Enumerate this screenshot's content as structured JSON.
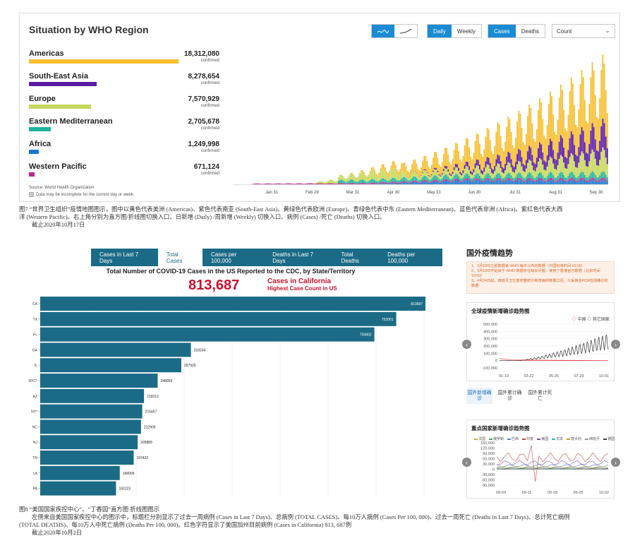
{
  "who": {
    "title": "Situation by WHO Region",
    "view_toggle": [
      "bar-chart-icon",
      "line-chart-icon"
    ],
    "period": {
      "daily": "Daily",
      "weekly": "Weekly"
    },
    "measure": {
      "cases": "Cases",
      "deaths": "Deaths"
    },
    "select_value": "Count",
    "confirmed_label": "confirmed",
    "regions": [
      {
        "name": "Americas",
        "value": "18,312,080",
        "color": "#f6bf2f",
        "num": 18312080
      },
      {
        "name": "South-East Asia",
        "value": "8,278,654",
        "color": "#5a1aa5",
        "num": 8278654
      },
      {
        "name": "Europe",
        "value": "7,570,929",
        "color": "#c6d85a",
        "num": 7570929
      },
      {
        "name": "Eastern Mediterranean",
        "value": "2,705,678",
        "color": "#20b39a",
        "num": 2705678
      },
      {
        "name": "Africa",
        "value": "1,249,998",
        "color": "#1777cf",
        "num": 1249998
      },
      {
        "name": "Western Pacific",
        "value": "671,124",
        "color": "#b5288d",
        "num": 671124
      }
    ],
    "source": "Source: World Health Organization",
    "note": "Data may be incomplete for the current day or week.",
    "months": [
      "Jan 31",
      "Feb 29",
      "Mar 31",
      "Apr 30",
      "May 31",
      "Jun 30",
      "Jul 31",
      "Aug 31",
      "Sep 30"
    ]
  },
  "caption1": {
    "line1": "图7 “世界卫生组织”疫情地图图示，图中以黄色代表美洲 (Americas)、紫色代表南亚 (South-East Asia)、黄绿色代表欧洲 (Europe)、青绿色代表中东 (Eastern Mediterranean)、蓝色代表非洲 (Africa)、紫红色代表大西",
    "line2": "洋 (Western Pacific)。右上角分别为直方图/折线图切换入口、日新增 (Daily) /周新增 (Weekly) 切换入口、病例 (Cases) /死亡 (Deaths) 切换入口。",
    "line3": "截止2020年10月17日"
  },
  "cdc": {
    "tabs": [
      "Cases in Last 7 Days",
      "Total Cases",
      "Cases per 100,000",
      "Deaths in Last 7 Days",
      "Total Deaths",
      "Deaths per 100,000"
    ],
    "active_tab": 1,
    "title": "Total Number of COVID-19 Cases in the US Reported to the CDC, by State/Territory",
    "big_number": "813,687",
    "big_label": "Cases in California",
    "big_sub": "Highest Case Count in US",
    "bar_color": "#1b6b86",
    "bars": [
      {
        "state": "CA",
        "value": 813687,
        "label": "813687"
      },
      {
        "state": "TX",
        "value": 752001,
        "label": "752001"
      },
      {
        "state": "FL",
        "value": 705802,
        "label": "705802"
      },
      {
        "state": "GA",
        "value": 318334,
        "label": "318334"
      },
      {
        "state": "IL",
        "value": 297929,
        "label": "297929"
      },
      {
        "state": "NYC*",
        "value": 248059,
        "label": "248059"
      },
      {
        "state": "AZ",
        "value": 219212,
        "label": "219212"
      },
      {
        "state": "NY*",
        "value": 215457,
        "label": "215457"
      },
      {
        "state": "NC",
        "value": 212909,
        "label": "212909"
      },
      {
        "state": "NJ",
        "value": 205889,
        "label": "205889"
      },
      {
        "state": "TN",
        "value": 197432,
        "label": "197432"
      },
      {
        "state": "LA",
        "value": 168009,
        "label": "168009"
      },
      {
        "state": "PA",
        "value": 160123,
        "label": "160123"
      }
    ]
  },
  "tencent": {
    "title": "国外疫情趋势",
    "notice": [
      "1、3月19日之前数据来 WHO 每日公布的数据（中国标准时间 10:00）",
      "2、3月19日开始由于 WHO 数据存在缺失问题，使用了香港官方数据（北京时间 10:00）",
      "3、4月24日起，西班牙卫生部修整统计新增病例数据口径，只采用含PCR检测确诊的数据"
    ],
    "card1": {
      "title": "全球疫情新增确诊趋势图",
      "legend_china": "中国",
      "legend_other": "其它国家",
      "y_ticks": [
        "500,000",
        "400,000",
        "300,000",
        "200,000",
        "100,000",
        "0",
        "-100,000"
      ],
      "x_ticks": [
        "01-19",
        "03-22",
        "05-26",
        "07-29",
        "10-01"
      ]
    },
    "tabs": [
      "国外新增确诊",
      "国外累计确诊",
      "国外累计死亡"
    ],
    "card2": {
      "title": "重点国家新增确诊趋势图",
      "legend": [
        {
          "name": "法国",
          "color": "#e5a13b"
        },
        {
          "name": "俄罗斯",
          "color": "#3fa66a"
        },
        {
          "name": "巴西",
          "color": "#5a7fd0"
        },
        {
          "name": "印度",
          "color": "#c44"
        },
        {
          "name": "美国",
          "color": "#7a4fb0"
        },
        {
          "name": "日本",
          "color": "#2bb3c8"
        },
        {
          "name": "意大利",
          "color": "#d98f2c"
        },
        {
          "name": "西班牙",
          "color": "#999"
        },
        {
          "name": "德国",
          "color": "#444"
        }
      ],
      "y_ticks": [
        "150,000",
        "120,000",
        "90,000",
        "60,000",
        "30,000",
        "0",
        "-30,000",
        "-60,000",
        "-90,000"
      ],
      "x_ticks": [
        "09-04",
        "09-11",
        "09-18",
        "09-25",
        "10-02"
      ]
    }
  },
  "caption2": {
    "line1": "图8 “美国国家疾控中心”、“丁香园”直方图 折线图图示",
    "line2": "左侧来自美国国家疾控中心的图示中，标题栏分别显示了过去一周病例 (Cases in Last 7 Days)、总病例 (TOTAL CASES)、每10万人病例 (Cases Per 100, 000)、过去一周死亡 (Deaths in Last 7 Days)、总计死亡病例",
    "line3": "(TOTAL DEATHS)、每10万人中死亡病例 (Deaths Per 100, 000)。红色字符显示了美国加州目前病例 (Cases in California) 813, 687例",
    "line4": "截止2020年10月2日"
  }
}
